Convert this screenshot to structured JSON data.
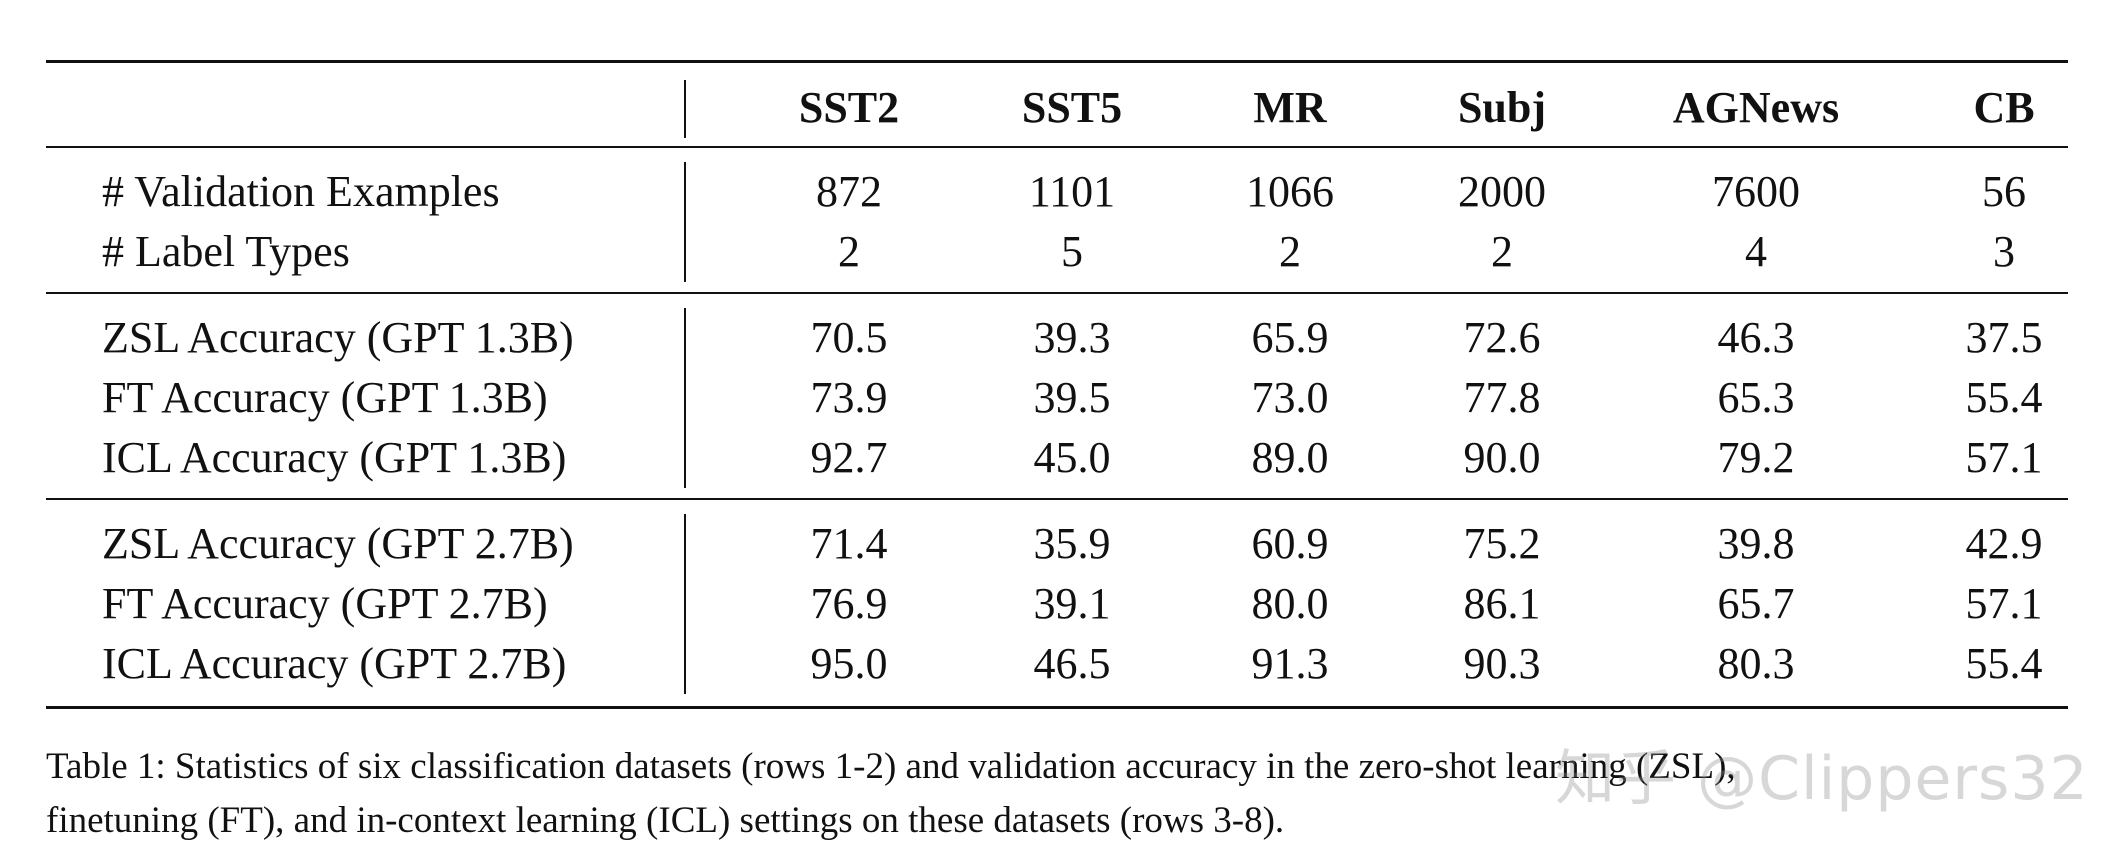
{
  "table": {
    "columns": [
      "SST2",
      "SST5",
      "MR",
      "Subj",
      "AGNews",
      "CB"
    ],
    "groups": [
      {
        "rows": [
          {
            "label": "# Validation Examples",
            "values": [
              "872",
              "1101",
              "1066",
              "2000",
              "7600",
              "56"
            ]
          },
          {
            "label": "# Label Types",
            "values": [
              "2",
              "5",
              "2",
              "2",
              "4",
              "3"
            ]
          }
        ]
      },
      {
        "rows": [
          {
            "label": "ZSL Accuracy (GPT 1.3B)",
            "values": [
              "70.5",
              "39.3",
              "65.9",
              "72.6",
              "46.3",
              "37.5"
            ]
          },
          {
            "label": "FT Accuracy (GPT 1.3B)",
            "values": [
              "73.9",
              "39.5",
              "73.0",
              "77.8",
              "65.3",
              "55.4"
            ]
          },
          {
            "label": "ICL Accuracy (GPT 1.3B)",
            "values": [
              "92.7",
              "45.0",
              "89.0",
              "90.0",
              "79.2",
              "57.1"
            ]
          }
        ]
      },
      {
        "rows": [
          {
            "label": "ZSL Accuracy (GPT 2.7B)",
            "values": [
              "71.4",
              "35.9",
              "60.9",
              "75.2",
              "39.8",
              "42.9"
            ]
          },
          {
            "label": "FT Accuracy (GPT 2.7B)",
            "values": [
              "76.9",
              "39.1",
              "80.0",
              "86.1",
              "65.7",
              "57.1"
            ]
          },
          {
            "label": "ICL Accuracy (GPT 2.7B)",
            "values": [
              "95.0",
              "46.5",
              "91.3",
              "90.3",
              "80.3",
              "55.4"
            ]
          }
        ]
      }
    ]
  },
  "caption": {
    "line1": "Table 1: Statistics of six classification datasets (rows 1-2) and validation accuracy in the zero-shot learning (ZSL),",
    "line2": "finetuning (FT), and in-context learning (ICL) settings on these datasets (rows 3-8)."
  },
  "watermark": "知乎 @Clippers32"
}
